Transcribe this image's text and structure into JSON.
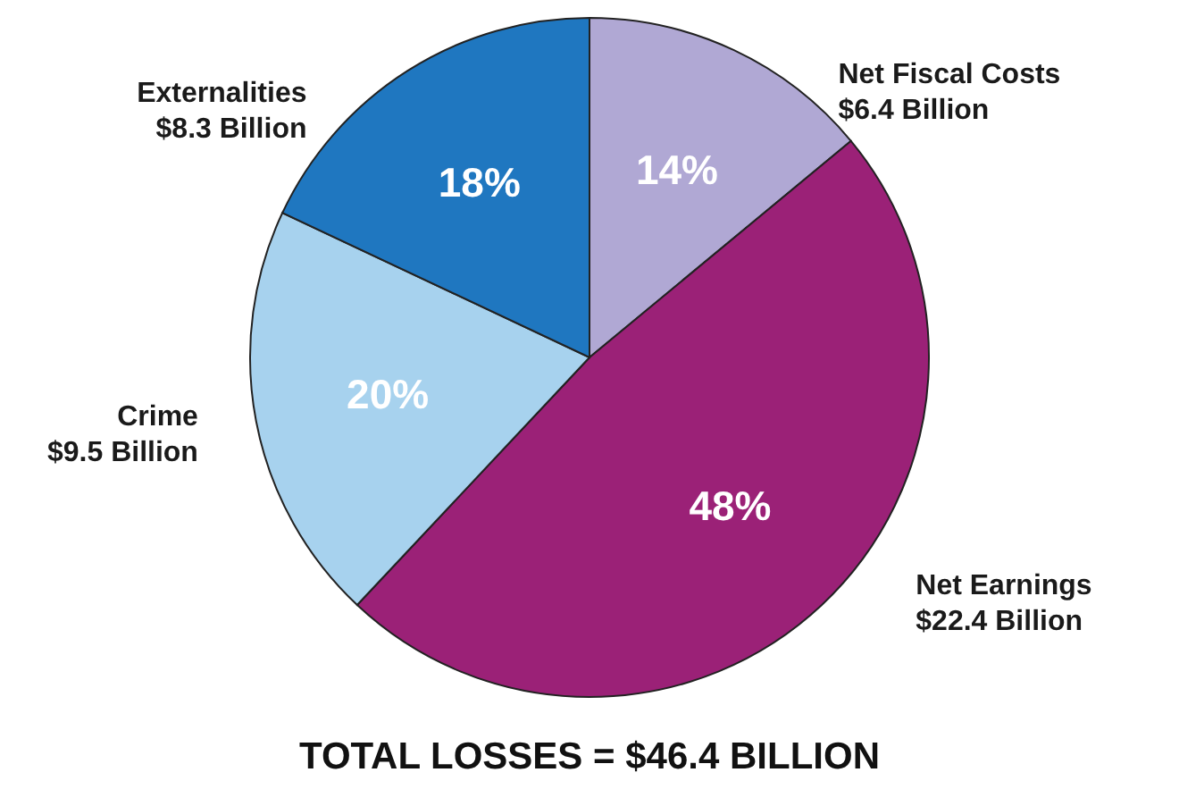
{
  "chart_data": {
    "type": "pie",
    "title": "TOTAL LOSSES = $46.4 BILLION",
    "categories": [
      "Net Fiscal Costs",
      "Net Earnings",
      "Crime",
      "Externalities"
    ],
    "values": [
      14,
      48,
      20,
      18
    ],
    "value_labels": [
      "14%",
      "48%",
      "20%",
      "18%"
    ],
    "annotations": [
      "$6.4 Billion",
      "$22.4 Billion",
      "$9.5 Billion",
      "$8.3 Billion"
    ],
    "colors": [
      "#b0a8d4",
      "#9b2177",
      "#a7d2ee",
      "#1f77c0"
    ]
  }
}
